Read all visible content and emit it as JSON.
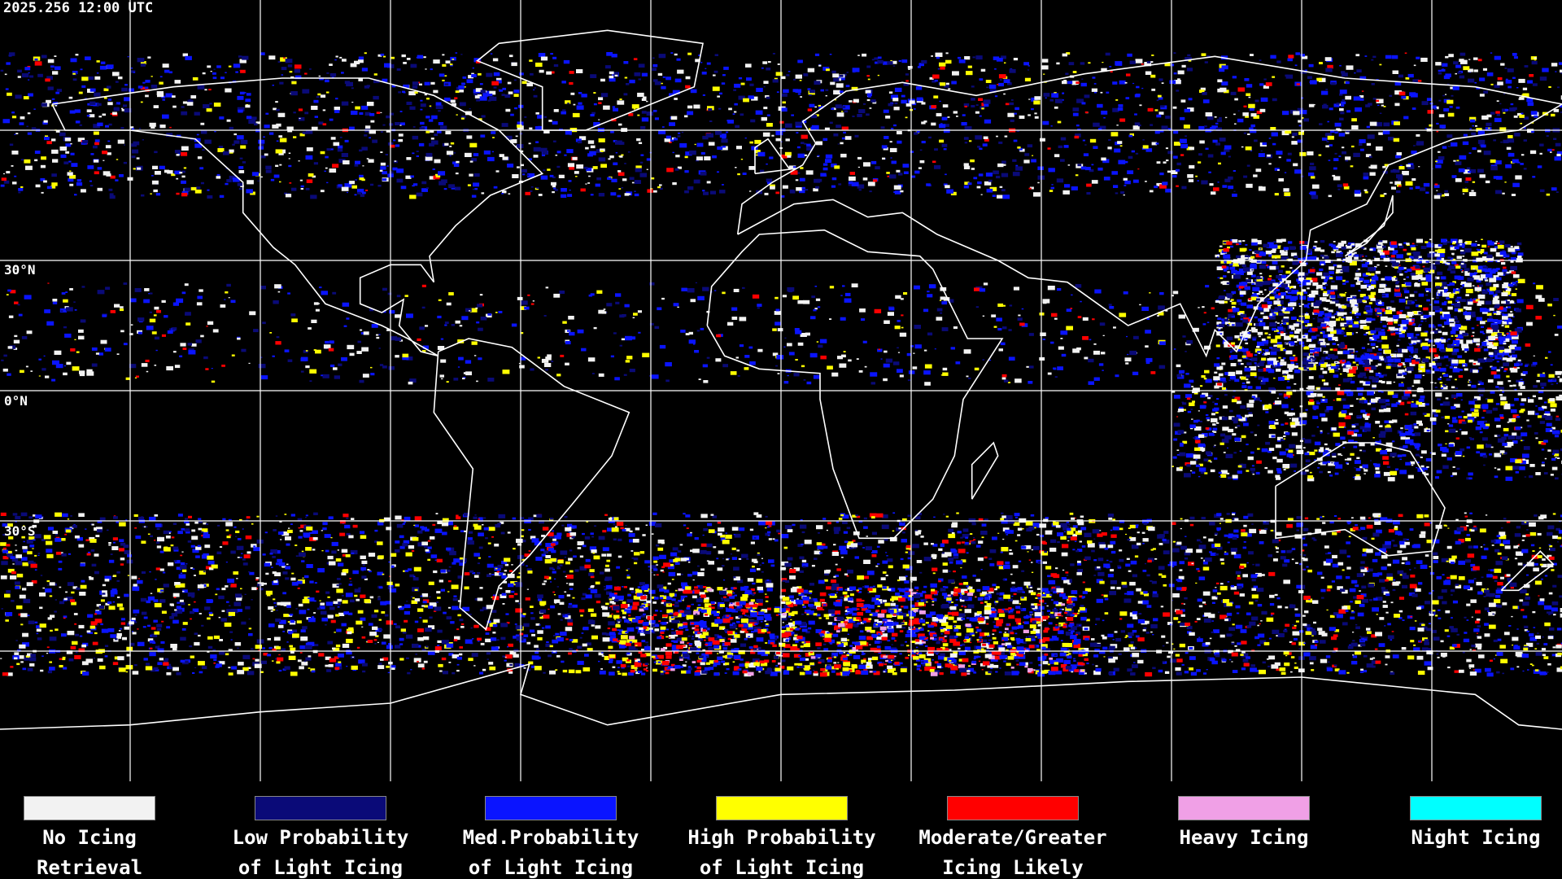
{
  "header": {
    "timestamp": "2025.256 12:00 UTC"
  },
  "map": {
    "lat_labels": [
      "30°N",
      "0°N",
      "30°S"
    ]
  },
  "legend": [
    {
      "line1": "No Icing",
      "line2": "Retrieval",
      "color": "#f2f2f2"
    },
    {
      "line1": "Low Probability",
      "line2": "of Light Icing",
      "color": "#0a0a78"
    },
    {
      "line1": "Med.Probability",
      "line2": "of Light Icing",
      "color": "#0a14ff"
    },
    {
      "line1": "High Probability",
      "line2": "of Light Icing",
      "color": "#ffff00"
    },
    {
      "line1": "Moderate/Greater",
      "line2": "Icing Likely",
      "color": "#ff0000"
    },
    {
      "line1": "Heavy Icing",
      "line2": "",
      "color": "#f0a0e6"
    },
    {
      "line1": "Night Icing",
      "line2": "",
      "color": "#00ffff"
    }
  ]
}
